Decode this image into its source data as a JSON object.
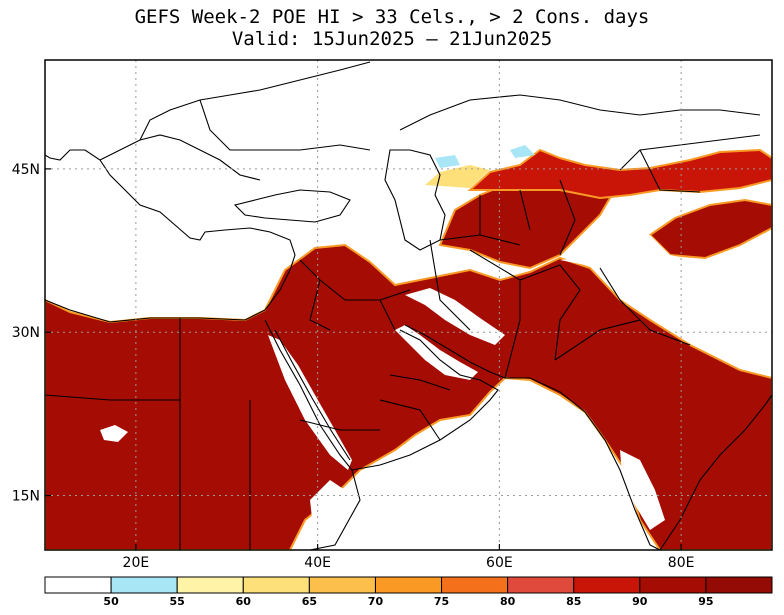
{
  "title": {
    "line1": "GEFS Week-2 POE HI > 33 Cels., > 2 Cons. days",
    "line2": "Valid: 15Jun2025 – 21Jun2025"
  },
  "axes": {
    "lon_labels": [
      {
        "lon": 20,
        "label": "20E"
      },
      {
        "lon": 40,
        "label": "40E"
      },
      {
        "lon": 60,
        "label": "60E"
      },
      {
        "lon": 80,
        "label": "80E"
      }
    ],
    "lat_labels": [
      {
        "lat": 45,
        "label": "45N"
      },
      {
        "lat": 30,
        "label": "30N"
      },
      {
        "lat": 15,
        "label": "15N"
      }
    ],
    "lon_range": [
      10,
      90
    ],
    "lat_range": [
      10,
      55
    ]
  },
  "colorbar": {
    "bins": [
      {
        "color": "#ffffff",
        "label": "50"
      },
      {
        "color": "#a8e6f5",
        "label": "55"
      },
      {
        "color": "#fff3a8",
        "label": "60"
      },
      {
        "color": "#fde07a",
        "label": "65"
      },
      {
        "color": "#fcbf4c",
        "label": "70"
      },
      {
        "color": "#fa9a24",
        "label": "75"
      },
      {
        "color": "#f4701a",
        "label": "80"
      },
      {
        "color": "#e04a3c",
        "label": "85"
      },
      {
        "color": "#c81508",
        "label": "90"
      },
      {
        "color": "#a50d04",
        "label": "95"
      },
      {
        "color": "#940a04",
        "label": ""
      }
    ]
  },
  "colors": {
    "fill_main": "#a50d04",
    "fill_mid": "#c81508",
    "fill_orange": "#fa9a24",
    "fill_yellow": "#fde07a",
    "fill_cyan": "#a8e6f5"
  }
}
